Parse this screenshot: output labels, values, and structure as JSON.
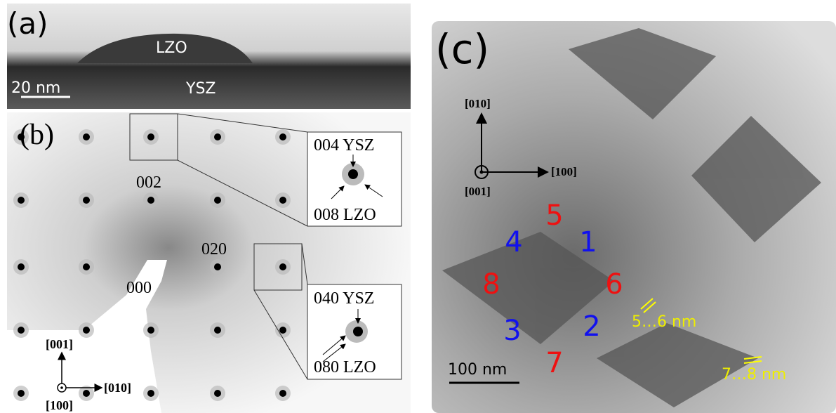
{
  "panel_a": {
    "label": "(a)",
    "layer_top": "LZO",
    "layer_bottom": "YSZ",
    "scale_bar": "20 nm"
  },
  "panel_b": {
    "label": "(b)",
    "spots": [
      "002",
      "020",
      "000"
    ],
    "inset_1": {
      "top": "004 YSZ",
      "bottom": "008 LZO"
    },
    "inset_2": {
      "top": "040 YSZ",
      "bottom": "080 LZO"
    },
    "axes": {
      "up": "[001]",
      "right": "[010]",
      "out": "[100]"
    }
  },
  "panel_c": {
    "label": "(c)",
    "axes": {
      "up": "[010]",
      "right": "[100]",
      "out": "[001]"
    },
    "numbers": [
      "5",
      "1",
      "6",
      "2",
      "7",
      "3",
      "8",
      "4"
    ],
    "spacings": [
      "5…6 nm",
      "7…8 nm"
    ],
    "scale_bar": "100 nm"
  }
}
